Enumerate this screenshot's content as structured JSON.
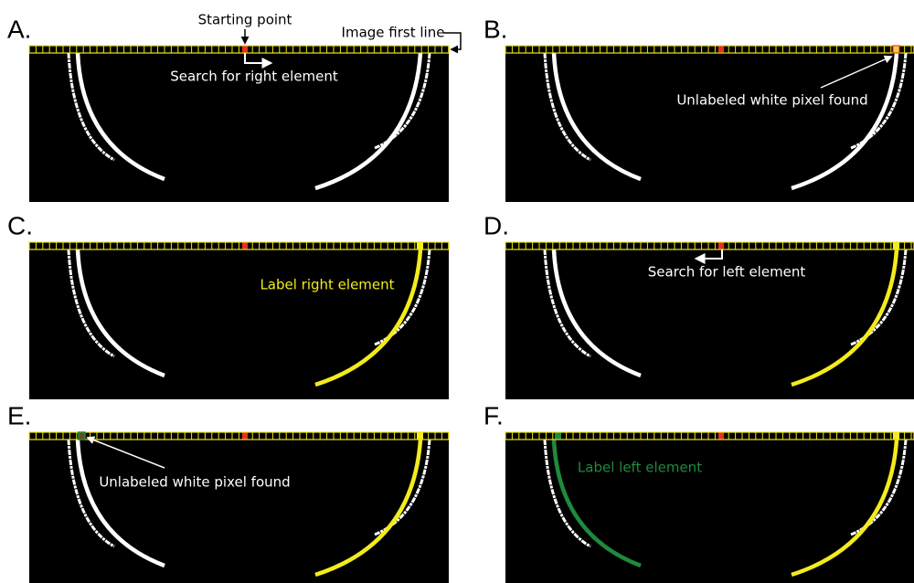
{
  "panels": [
    {
      "label": "A.",
      "annotations": [
        "Starting point",
        "Image first line",
        "Search for right element"
      ]
    },
    {
      "label": "B.",
      "annotations": [
        "Unlabeled white pixel found"
      ]
    },
    {
      "label": "C.",
      "annotations": [
        "Label right element"
      ]
    },
    {
      "label": "D.",
      "annotations": [
        "Search for left element"
      ]
    },
    {
      "label": "E.",
      "annotations": [
        "Unlabeled white pixel found"
      ]
    },
    {
      "label": "F.",
      "annotations": [
        "Label left element"
      ]
    }
  ]
}
